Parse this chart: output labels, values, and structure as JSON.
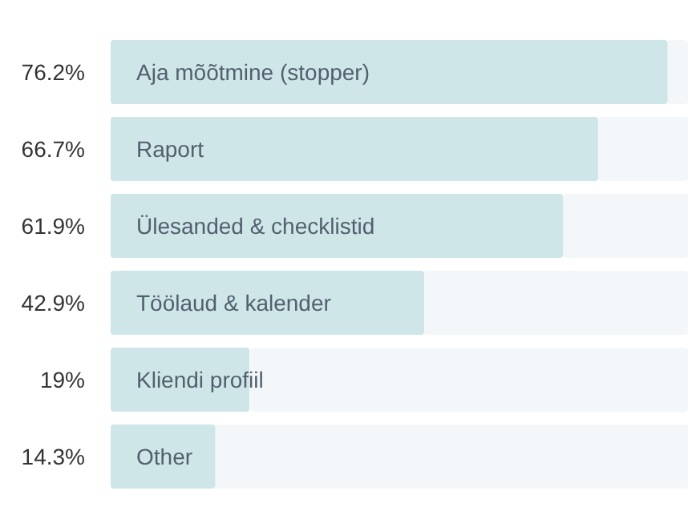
{
  "chart_data": {
    "type": "bar",
    "orientation": "horizontal",
    "categories": [
      "Aja mõõtmine (stopper)",
      "Raport",
      "Ülesanded & checklistid",
      "Töölaud & kalender",
      "Kliendi profiil",
      "Other"
    ],
    "values": [
      76.2,
      66.7,
      61.9,
      42.9,
      19,
      14.3
    ],
    "value_labels": [
      "76.2%",
      "66.7%",
      "61.9%",
      "42.9%",
      "19%",
      "14.3%"
    ],
    "color": "#cfe6e9",
    "xlim": [
      0,
      79
    ]
  }
}
